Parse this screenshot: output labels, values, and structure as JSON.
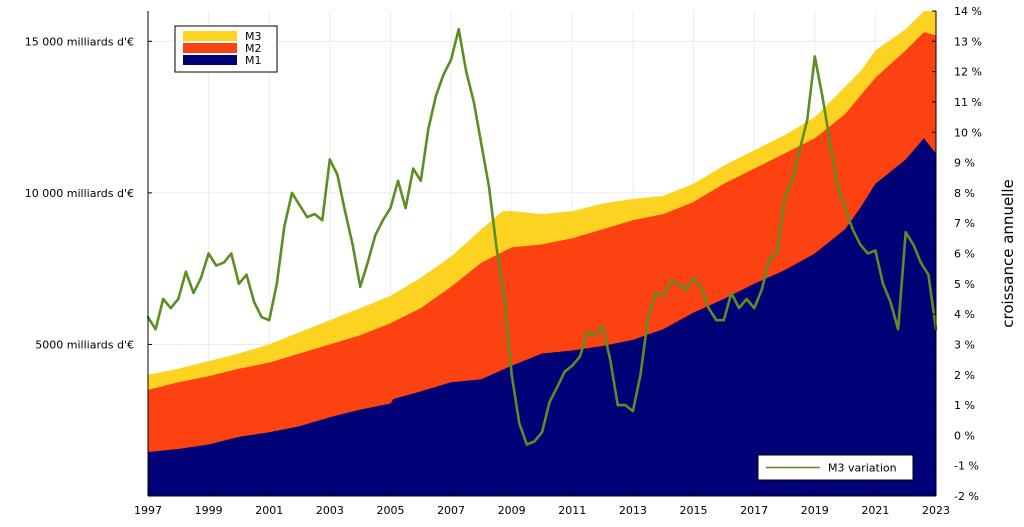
{
  "chart_data": {
    "type": "area",
    "title": "",
    "xlabel": "",
    "ylabel_left": "",
    "ylabel_right": "croissance annuelle",
    "x_range": [
      1997,
      2023
    ],
    "ylim_left": [
      0,
      16000
    ],
    "ylim_right": [
      -2,
      14
    ],
    "x_ticks": [
      {
        "value": 1997,
        "label": "1997"
      },
      {
        "value": 1999,
        "label": "1999"
      },
      {
        "value": 2001,
        "label": "2001"
      },
      {
        "value": 2003,
        "label": "2003"
      },
      {
        "value": 2005,
        "label": "2005"
      },
      {
        "value": 2007,
        "label": "2007"
      },
      {
        "value": 2009,
        "label": "2009"
      },
      {
        "value": 2011,
        "label": "2011"
      },
      {
        "value": 2013,
        "label": "2013"
      },
      {
        "value": 2015,
        "label": "2015"
      },
      {
        "value": 2017,
        "label": "2017"
      },
      {
        "value": 2019,
        "label": "2019"
      },
      {
        "value": 2021,
        "label": "2021"
      },
      {
        "value": 2023,
        "label": "2023"
      }
    ],
    "y_ticks_left": [
      {
        "value": 5000,
        "label": "5000 milliards d'€"
      },
      {
        "value": 10000,
        "label": "10 000 milliards d'€"
      },
      {
        "value": 15000,
        "label": "15 000 milliards d'€"
      }
    ],
    "y_ticks_right": [
      {
        "value": -2,
        "label": "-2 %"
      },
      {
        "value": -1,
        "label": "-1 %"
      },
      {
        "value": 0,
        "label": "0 %"
      },
      {
        "value": 1,
        "label": "1 %"
      },
      {
        "value": 2,
        "label": "2 %"
      },
      {
        "value": 3,
        "label": "3 %"
      },
      {
        "value": 4,
        "label": "4 %"
      },
      {
        "value": 5,
        "label": "5 %"
      },
      {
        "value": 6,
        "label": "6 %"
      },
      {
        "value": 7,
        "label": "7 %"
      },
      {
        "value": 8,
        "label": "8 %"
      },
      {
        "value": 9,
        "label": "9 %"
      },
      {
        "value": 10,
        "label": "10 %"
      },
      {
        "value": 11,
        "label": "11 %"
      },
      {
        "value": 12,
        "label": "12 %"
      },
      {
        "value": 13,
        "label": "13 %"
      },
      {
        "value": 14,
        "label": "14 %"
      }
    ],
    "area_legend_position": "top-left",
    "line_legend_position": "bottom-right",
    "areas": [
      {
        "name": "M3",
        "color": "#fdd321",
        "x": [
          1997,
          1998,
          1999,
          2000,
          2001,
          2002,
          2003,
          2004,
          2005,
          2006,
          2007,
          2008,
          2008.7,
          2009,
          2010,
          2011,
          2012,
          2013,
          2014,
          2015,
          2016,
          2017,
          2018,
          2019,
          2020,
          2020.5,
          2021,
          2022,
          2022.6,
          2023
        ],
        "values": [
          4000,
          4200,
          4450,
          4700,
          5000,
          5400,
          5800,
          6200,
          6600,
          7200,
          7900,
          8800,
          9400,
          9400,
          9300,
          9400,
          9650,
          9800,
          9900,
          10300,
          10900,
          11400,
          11900,
          12500,
          13500,
          14000,
          14700,
          15400,
          16000,
          16000
        ]
      },
      {
        "name": "M2",
        "color": "#fd4212",
        "x": [
          1997,
          1998,
          1999,
          2000,
          2001,
          2002,
          2003,
          2004,
          2005,
          2006,
          2007,
          2008,
          2009,
          2010,
          2011,
          2012,
          2013,
          2014,
          2015,
          2016,
          2017,
          2018,
          2019,
          2020,
          2020.5,
          2021,
          2022,
          2022.6,
          2023
        ],
        "values": [
          3500,
          3750,
          3950,
          4200,
          4400,
          4700,
          5000,
          5300,
          5700,
          6200,
          6900,
          7700,
          8200,
          8300,
          8500,
          8800,
          9100,
          9300,
          9700,
          10300,
          10800,
          11300,
          11800,
          12600,
          13200,
          13800,
          14700,
          15300,
          15200
        ]
      },
      {
        "name": "M1",
        "color": "#000077",
        "x": [
          1997,
          1998,
          1999,
          2000,
          2001,
          2002,
          2003,
          2004,
          2005,
          2005.1,
          2006,
          2007,
          2008,
          2009,
          2010,
          2011,
          2012,
          2013,
          2014,
          2015,
          2016,
          2017,
          2018,
          2019,
          2020,
          2020.5,
          2021,
          2022,
          2022.6,
          2023
        ],
        "values": [
          1450,
          1550,
          1700,
          1950,
          2100,
          2300,
          2600,
          2850,
          3050,
          3200,
          3450,
          3750,
          3850,
          4300,
          4700,
          4800,
          4950,
          5150,
          5500,
          6050,
          6500,
          7000,
          7450,
          8000,
          8800,
          9500,
          10300,
          11100,
          11800,
          11300
        ]
      }
    ],
    "line_series": {
      "name": "M3 variation",
      "color": "#5b8e23",
      "axis": "right",
      "x": [
        1997,
        1997.25,
        1997.5,
        1997.75,
        1998,
        1998.25,
        1998.5,
        1998.75,
        1999,
        1999.25,
        1999.5,
        1999.75,
        2000,
        2000.25,
        2000.5,
        2000.75,
        2001,
        2001.25,
        2001.5,
        2001.75,
        2002,
        2002.25,
        2002.5,
        2002.75,
        2003,
        2003.25,
        2003.5,
        2003.75,
        2004,
        2004.25,
        2004.5,
        2004.75,
        2005,
        2005.25,
        2005.5,
        2005.75,
        2006,
        2006.25,
        2006.5,
        2006.75,
        2007,
        2007.25,
        2007.5,
        2007.75,
        2008,
        2008.25,
        2008.5,
        2008.75,
        2009,
        2009.25,
        2009.5,
        2009.75,
        2010,
        2010.25,
        2010.5,
        2010.75,
        2011,
        2011.25,
        2011.5,
        2011.75,
        2012,
        2012.25,
        2012.5,
        2012.75,
        2013,
        2013.25,
        2013.5,
        2013.75,
        2014,
        2014.25,
        2014.5,
        2014.75,
        2015,
        2015.25,
        2015.5,
        2015.75,
        2016,
        2016.25,
        2016.5,
        2016.75,
        2017,
        2017.25,
        2017.5,
        2017.75,
        2018,
        2018.25,
        2018.5,
        2018.75,
        2019,
        2019.25,
        2019.5,
        2019.75,
        2020,
        2020.25,
        2020.5,
        2020.75,
        2021,
        2021.25,
        2021.5,
        2021.75,
        2022,
        2022.25,
        2022.5,
        2022.75,
        2023
      ],
      "values": [
        3.9,
        3.5,
        4.5,
        4.2,
        4.5,
        5.4,
        4.7,
        5.2,
        6.0,
        5.6,
        5.7,
        6.0,
        5.0,
        5.3,
        4.4,
        3.9,
        3.8,
        5.0,
        6.9,
        8.0,
        7.6,
        7.2,
        7.3,
        7.1,
        9.1,
        8.6,
        7.4,
        6.3,
        4.9,
        5.7,
        6.6,
        7.1,
        7.5,
        8.4,
        7.5,
        8.8,
        8.4,
        10.1,
        11.2,
        11.9,
        12.4,
        13.4,
        12.0,
        11.0,
        9.6,
        8.2,
        6.2,
        4.6,
        2.0,
        0.4,
        -0.3,
        -0.2,
        0.1,
        1.1,
        1.6,
        2.1,
        2.3,
        2.6,
        3.4,
        3.3,
        3.6,
        2.5,
        1.0,
        1.0,
        0.8,
        2.0,
        3.9,
        4.7,
        4.6,
        5.1,
        5.0,
        4.8,
        5.2,
        4.9,
        4.2,
        3.8,
        3.8,
        4.7,
        4.2,
        4.5,
        4.2,
        4.8,
        5.8,
        6.0,
        7.8,
        8.4,
        9.4,
        10.4,
        12.5,
        11.2,
        9.7,
        8.2,
        7.5,
        6.8,
        6.3,
        6.0,
        6.1,
        5.0,
        4.4,
        3.5,
        6.7,
        6.3,
        5.7,
        5.3,
        3.5
      ]
    }
  }
}
